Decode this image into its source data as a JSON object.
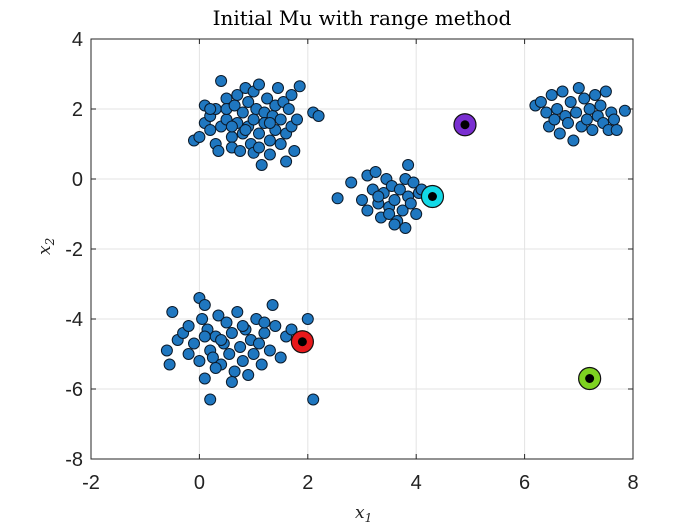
{
  "chart_data": {
    "type": "scatter",
    "title": "Initial Mu with range method",
    "xlabel_main": "x",
    "xlabel_sub": "1",
    "ylabel_main": "x",
    "ylabel_sub": "2",
    "xlim": [
      -2,
      8
    ],
    "ylim": [
      -8,
      4
    ],
    "xticks": [
      -2,
      0,
      2,
      4,
      6,
      8
    ],
    "yticks": [
      -8,
      -6,
      -4,
      -2,
      0,
      2,
      4
    ],
    "grid": true,
    "point_color": "#1f77c0",
    "points": [
      [
        -0.1,
        1.1
      ],
      [
        0.0,
        1.2
      ],
      [
        0.1,
        1.6
      ],
      [
        0.1,
        2.1
      ],
      [
        0.2,
        1.4
      ],
      [
        0.2,
        1.8
      ],
      [
        0.3,
        2.0
      ],
      [
        0.3,
        1.0
      ],
      [
        0.35,
        0.8
      ],
      [
        0.4,
        1.5
      ],
      [
        0.4,
        2.8
      ],
      [
        0.5,
        1.7
      ],
      [
        0.5,
        2.3
      ],
      [
        0.5,
        2.0
      ],
      [
        0.6,
        1.2
      ],
      [
        0.6,
        0.9
      ],
      [
        0.65,
        2.1
      ],
      [
        0.7,
        1.6
      ],
      [
        0.7,
        2.4
      ],
      [
        0.75,
        0.8
      ],
      [
        0.8,
        1.3
      ],
      [
        0.8,
        1.9
      ],
      [
        0.85,
        2.6
      ],
      [
        0.9,
        2.2
      ],
      [
        0.9,
        1.5
      ],
      [
        0.95,
        1.0
      ],
      [
        1.0,
        0.75
      ],
      [
        1.0,
        1.7
      ],
      [
        1.0,
        2.5
      ],
      [
        1.05,
        2.0
      ],
      [
        1.1,
        1.3
      ],
      [
        1.1,
        2.7
      ],
      [
        1.15,
        0.4
      ],
      [
        1.2,
        1.9
      ],
      [
        1.2,
        1.6
      ],
      [
        1.25,
        2.3
      ],
      [
        1.3,
        1.1
      ],
      [
        1.3,
        0.7
      ],
      [
        1.35,
        1.8
      ],
      [
        1.4,
        2.1
      ],
      [
        1.4,
        1.4
      ],
      [
        1.45,
        2.6
      ],
      [
        1.5,
        1.0
      ],
      [
        1.5,
        1.7
      ],
      [
        1.55,
        2.2
      ],
      [
        1.6,
        1.3
      ],
      [
        1.6,
        0.5
      ],
      [
        1.65,
        2.0
      ],
      [
        1.7,
        1.5
      ],
      [
        1.7,
        2.4
      ],
      [
        1.75,
        0.8
      ],
      [
        1.8,
        1.7
      ],
      [
        1.85,
        2.65
      ],
      [
        2.1,
        1.9
      ],
      [
        2.2,
        1.8
      ],
      [
        0.2,
        2.0
      ],
      [
        0.6,
        1.5
      ],
      [
        1.3,
        1.6
      ],
      [
        0.85,
        1.4
      ],
      [
        1.1,
        0.9
      ],
      [
        2.55,
        -0.55
      ],
      [
        2.8,
        -0.1
      ],
      [
        3.0,
        -0.6
      ],
      [
        3.1,
        0.1
      ],
      [
        3.1,
        -0.9
      ],
      [
        3.2,
        -0.3
      ],
      [
        3.25,
        0.2
      ],
      [
        3.3,
        -0.7
      ],
      [
        3.35,
        -1.1
      ],
      [
        3.4,
        -0.4
      ],
      [
        3.45,
        0.0
      ],
      [
        3.5,
        -0.8
      ],
      [
        3.5,
        -1.0
      ],
      [
        3.55,
        -0.2
      ],
      [
        3.6,
        -0.6
      ],
      [
        3.65,
        -1.2
      ],
      [
        3.7,
        -0.3
      ],
      [
        3.75,
        -0.9
      ],
      [
        3.8,
        0.0
      ],
      [
        3.8,
        -1.4
      ],
      [
        3.85,
        -0.5
      ],
      [
        3.85,
        0.4
      ],
      [
        3.9,
        -0.7
      ],
      [
        3.95,
        -0.1
      ],
      [
        4.0,
        -1.0
      ],
      [
        4.05,
        -0.4
      ],
      [
        4.1,
        -0.3
      ],
      [
        4.2,
        -0.5
      ],
      [
        3.3,
        -0.5
      ],
      [
        3.6,
        -1.3
      ],
      [
        6.2,
        2.1
      ],
      [
        6.3,
        2.2
      ],
      [
        6.4,
        1.9
      ],
      [
        6.45,
        1.5
      ],
      [
        6.5,
        2.4
      ],
      [
        6.55,
        1.7
      ],
      [
        6.6,
        2.0
      ],
      [
        6.65,
        1.3
      ],
      [
        6.7,
        2.5
      ],
      [
        6.75,
        1.8
      ],
      [
        6.8,
        1.6
      ],
      [
        6.85,
        2.2
      ],
      [
        6.9,
        1.1
      ],
      [
        6.95,
        1.9
      ],
      [
        7.0,
        2.6
      ],
      [
        7.05,
        1.5
      ],
      [
        7.1,
        2.3
      ],
      [
        7.15,
        1.7
      ],
      [
        7.2,
        2.0
      ],
      [
        7.25,
        1.4
      ],
      [
        7.3,
        2.4
      ],
      [
        7.35,
        1.8
      ],
      [
        7.4,
        2.1
      ],
      [
        7.45,
        1.6
      ],
      [
        7.5,
        2.5
      ],
      [
        7.55,
        1.4
      ],
      [
        7.6,
        1.9
      ],
      [
        7.65,
        1.7
      ],
      [
        7.7,
        1.4
      ],
      [
        7.85,
        1.95
      ],
      [
        -0.6,
        -4.9
      ],
      [
        -0.55,
        -5.3
      ],
      [
        -0.5,
        -3.8
      ],
      [
        -0.4,
        -4.6
      ],
      [
        -0.3,
        -4.4
      ],
      [
        -0.2,
        -5.0
      ],
      [
        -0.1,
        -4.7
      ],
      [
        0.0,
        -3.4
      ],
      [
        0.0,
        -5.2
      ],
      [
        0.05,
        -4.0
      ],
      [
        0.1,
        -5.7
      ],
      [
        0.1,
        -3.6
      ],
      [
        0.15,
        -4.3
      ],
      [
        0.2,
        -4.9
      ],
      [
        0.2,
        -6.3
      ],
      [
        0.25,
        -5.1
      ],
      [
        0.3,
        -4.5
      ],
      [
        0.35,
        -3.9
      ],
      [
        0.4,
        -5.3
      ],
      [
        0.45,
        -4.7
      ],
      [
        0.5,
        -4.1
      ],
      [
        0.55,
        -5.0
      ],
      [
        0.6,
        -4.4
      ],
      [
        0.65,
        -5.5
      ],
      [
        0.7,
        -3.8
      ],
      [
        0.75,
        -4.8
      ],
      [
        0.8,
        -5.2
      ],
      [
        0.85,
        -4.3
      ],
      [
        0.9,
        -5.6
      ],
      [
        0.95,
        -4.6
      ],
      [
        1.0,
        -5.0
      ],
      [
        1.05,
        -4.0
      ],
      [
        1.1,
        -4.7
      ],
      [
        1.15,
        -5.3
      ],
      [
        1.2,
        -4.4
      ],
      [
        1.3,
        -4.9
      ],
      [
        1.35,
        -3.6
      ],
      [
        1.4,
        -4.2
      ],
      [
        1.5,
        -5.1
      ],
      [
        1.6,
        -4.5
      ],
      [
        1.7,
        -4.3
      ],
      [
        2.0,
        -4.0
      ],
      [
        2.1,
        -6.3
      ],
      [
        0.3,
        -5.4
      ],
      [
        0.6,
        -5.8
      ],
      [
        1.2,
        -4.1
      ],
      [
        0.1,
        -4.5
      ],
      [
        -0.2,
        -4.2
      ],
      [
        0.4,
        -4.6
      ],
      [
        0.8,
        -4.2
      ]
    ],
    "centroids": [
      {
        "x": 4.9,
        "y": 1.55,
        "color": "#7a2fd1"
      },
      {
        "x": 4.3,
        "y": -0.5,
        "color": "#13d9e6"
      },
      {
        "x": 1.9,
        "y": -4.65,
        "color": "#e8191b"
      },
      {
        "x": 7.2,
        "y": -5.7,
        "color": "#7ed321"
      }
    ]
  }
}
